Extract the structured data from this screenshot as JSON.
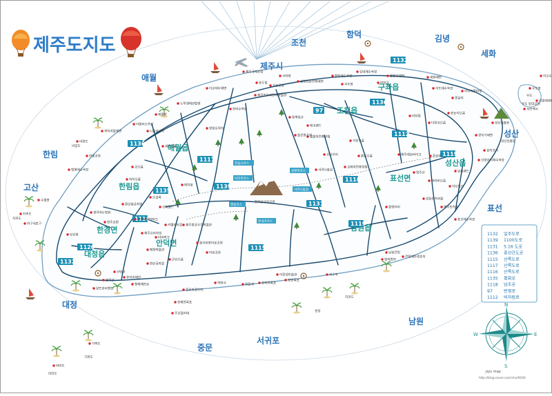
{
  "title": "제주도지도",
  "colors": {
    "road": "#16496e",
    "coast": "#7aa6c6",
    "badge": "#1b8fb4",
    "region": "#2a73b8",
    "poi": "#d9262c",
    "title": "#2f7dc8"
  },
  "regions": {
    "jeju_si": "제주시",
    "jocheon": "조천",
    "hallim_top": "한림",
    "hamdeok": "함덕",
    "gimnyeong": "김녕",
    "sehwa": "세화",
    "aewol": "애월",
    "hallim": "한림",
    "gujwa": "구좌읍",
    "jocheon_eup": "조천읍",
    "aewol_eup": "애월읍",
    "seongsan": "성산",
    "gosan": "고산",
    "hallim_eup": "한림읍",
    "pyoseon_myeon": "표선면",
    "seongsan_eup": "성산읍",
    "hangyeong": "한경면",
    "andeok": "안덕면",
    "namwon_eup": "남원읍",
    "pyoseon": "표선",
    "daejeong": "대정",
    "jungmun": "중문",
    "seogwipo": "서귀포",
    "namwon": "남원",
    "daejeong_eup": "대정읍"
  },
  "roads": {
    "r1132a": "1132",
    "r1136a": "1136",
    "r97": "97",
    "r1136b": "1136",
    "r1112": "1112",
    "r1119": "1119",
    "r1117": "1117",
    "r1135": "1135",
    "r1139": "1139",
    "r1118": "1118",
    "r1131": "1131",
    "r1116": "1116",
    "r1120": "1120",
    "r1115": "1115",
    "r1119b": "1119",
    "r1132b": "1132"
  },
  "landmarks": {
    "hallasan": "한라산국립공원",
    "sunrise_label": "성산일출봉",
    "udo": "우도",
    "udo_sub": "우도 등대공원",
    "marado": "마라도",
    "gapado": "가파도",
    "chagwido": "차귀도",
    "seop": "섶섬",
    "beomseom": "범섬",
    "munseom": "문섬",
    "jigwido": "지귀도",
    "bukchon_label": "북촌",
    "park_labels": [
      "관음사코스",
      "어리목코스",
      "영실코스",
      "성판악코스",
      "돈내코코스",
      "사려니숲길"
    ]
  },
  "poi": [
    "제주국제공항",
    "용두암",
    "이호테우해변",
    "노루생태관찰원",
    "애월항",
    "곽지과물해변",
    "비양도",
    "협재해수욕장",
    "한림공원",
    "수월봉",
    "차귀도",
    "자구내포구",
    "당산봉",
    "산방산",
    "송악산",
    "용머리해안",
    "가파도",
    "마라도",
    "알뜨르비행장",
    "형제해안로",
    "화순곶자왈",
    "군산오름",
    "중문관광단지",
    "천제연폭포",
    "주상절리대",
    "약천사",
    "외돌개",
    "천지연폭포",
    "정방폭포",
    "이중섭미술관",
    "쇠소깍",
    "큰엉해안경승지",
    "남원큰엉",
    "표선해수욕장",
    "제주민속촌",
    "성읍민속마을",
    "섭지코지",
    "광치기해변",
    "성산일출봉",
    "신양섭지해수욕장",
    "종달리",
    "하도해수욕장",
    "세화해변",
    "월정리해변",
    "김녕해수욕장",
    "만장굴",
    "함덕해수욕장",
    "서우봉",
    "삼양검은모래해변",
    "사라봉",
    "신산공원",
    "한라수목원",
    "제주민속자연사박물관",
    "에코랜드",
    "절물자연휴양림",
    "거문오름",
    "산굼부리",
    "비자림",
    "다랑쉬오름",
    "용눈이오름",
    "제주레일바이크",
    "사려니숲길",
    "교래자연휴양림",
    "돌문화공원",
    "붉은오름",
    "물영아리",
    "영주산",
    "따라비오름",
    "새별오름",
    "나홀로나무",
    "아침미소목장",
    "항몽유적지",
    "테지움",
    "금오름",
    "저지오름",
    "오설록",
    "신화월드",
    "카멜리아힐",
    "동백동산",
    "환상숲곶자왈",
    "제주유리의성",
    "소인국테마파크",
    "방주교회",
    "생각하는정원",
    "더마파크",
    "평화박물관",
    "제주항공우주박물관",
    "돌하르방미로공원",
    "미로공원",
    "일출랜드",
    "허브동산",
    "혼인지",
    "아쿠아플라넷",
    "빛의벙커",
    "우도봉",
    "서빈백사",
    "검멀레해변",
    "하고수동해수욕장"
  ],
  "legend": [
    {
      "code": "1132",
      "name": "일주도로"
    },
    {
      "code": "1139",
      "name": "1100도로"
    },
    {
      "code": "1131",
      "name": "5.16 도로"
    },
    {
      "code": "1136",
      "name": "중산간도로"
    },
    {
      "code": "1115",
      "name": "산록도로"
    },
    {
      "code": "1117",
      "name": "산록도로"
    },
    {
      "code": "1116",
      "name": "산록도로"
    },
    {
      "code": "1135",
      "name": "평화로"
    },
    {
      "code": "1118",
      "name": "남조로"
    },
    {
      "code": "97",
      "name": "번영로"
    },
    {
      "code": "1112",
      "name": "비자림로"
    }
  ],
  "compass": {
    "n": "N",
    "s": "S",
    "e": "E",
    "w": "W",
    "brand": "Jeju map",
    "url": "http://blog.naver.com/chul9100"
  }
}
